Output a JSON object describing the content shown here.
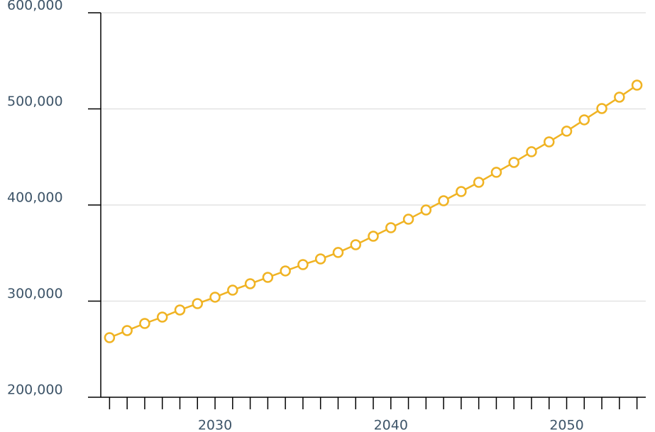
{
  "chart_data": {
    "type": "line",
    "x": [
      2024,
      2025,
      2026,
      2027,
      2028,
      2029,
      2030,
      2031,
      2032,
      2033,
      2034,
      2035,
      2036,
      2037,
      2038,
      2039,
      2040,
      2041,
      2042,
      2043,
      2044,
      2045,
      2046,
      2047,
      2048,
      2049,
      2050,
      2051,
      2052,
      2053,
      2054
    ],
    "series": [
      {
        "color": "#f0b323",
        "values": [
          262000,
          269400,
          276750,
          283400,
          290800,
          297400,
          304100,
          311400,
          318100,
          324700,
          331400,
          338000,
          343900,
          350600,
          358700,
          367500,
          376400,
          385200,
          394800,
          404400,
          414000,
          423600,
          434000,
          444300,
          455400,
          465700,
          476800,
          488600,
          500400,
          512200,
          524700
        ]
      }
    ],
    "xlim": [
      2023.5,
      2054.5
    ],
    "xticks": [
      2030,
      2040,
      2050
    ],
    "ylim": [
      200000,
      600000
    ],
    "yticks": [
      {
        "value": 200000,
        "label": "200,000"
      },
      {
        "value": 300000,
        "label": "300,000"
      },
      {
        "value": 400000,
        "label": "400,000"
      },
      {
        "value": 500000,
        "label": "500,000"
      },
      {
        "value": 600000,
        "label": "600,000"
      }
    ],
    "grid": true
  }
}
